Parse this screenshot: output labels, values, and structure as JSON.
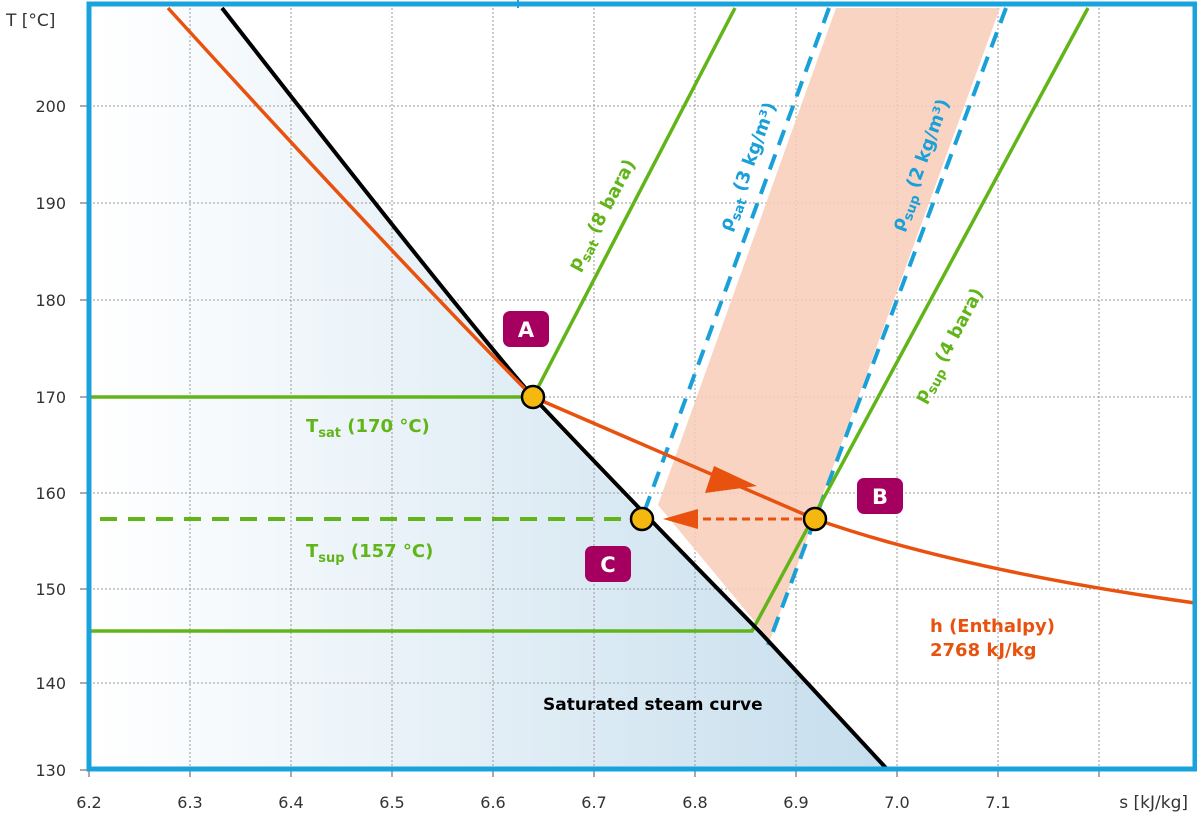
{
  "colors": {
    "frame": "#19a3dc",
    "grid": "#9a9a9a",
    "saturated_curve": "#000000",
    "enthalpy": "#e8520e",
    "pressure_lines": "#62b519",
    "density_lines": "#1aa0d8",
    "band_fill": "#f9cdb8",
    "point_fill": "#f5b80f",
    "badge": "#a5005f",
    "gradient": "#c3dcec"
  },
  "axes": {
    "x_title": "s [kJ/kg]",
    "y_title": "T [°C]",
    "x_ticks": [
      "6.2",
      "6.3",
      "6.4",
      "6.5",
      "6.6",
      "6.7",
      "6.8",
      "6.9",
      "7.0",
      "7.1"
    ],
    "y_ticks": [
      "130",
      "140",
      "150",
      "160",
      "170",
      "180",
      "190",
      "200"
    ]
  },
  "lines": {
    "p_sat": {
      "base": "p",
      "sub": "sat",
      "rest": " (8 bara)"
    },
    "p_sup": {
      "base": "p",
      "sub": "sup",
      "rest": " (4 bara)"
    },
    "rho_sat": {
      "base": "ρ",
      "sub": "sat",
      "rest": " (3 kg/m³)"
    },
    "rho_sup": {
      "base": "ρ",
      "sub": "sup",
      "rest": " (2 kg/m³)"
    },
    "t_sat": {
      "base": "T",
      "sub": "sat",
      "rest": " (170 °C)"
    },
    "t_sup": {
      "base": "T",
      "sub": "sup",
      "rest": " (157 °C)"
    },
    "enthalpy_1": "h (Enthalpy)",
    "enthalpy_2": "2768 kJ/kg",
    "saturated": "Saturated steam curve"
  },
  "points": {
    "A": {
      "label": "A",
      "s": 6.64,
      "T": 170
    },
    "B": {
      "label": "B",
      "s": 6.92,
      "T": 157
    },
    "C": {
      "label": "C",
      "s": 6.75,
      "T": 157
    }
  }
}
